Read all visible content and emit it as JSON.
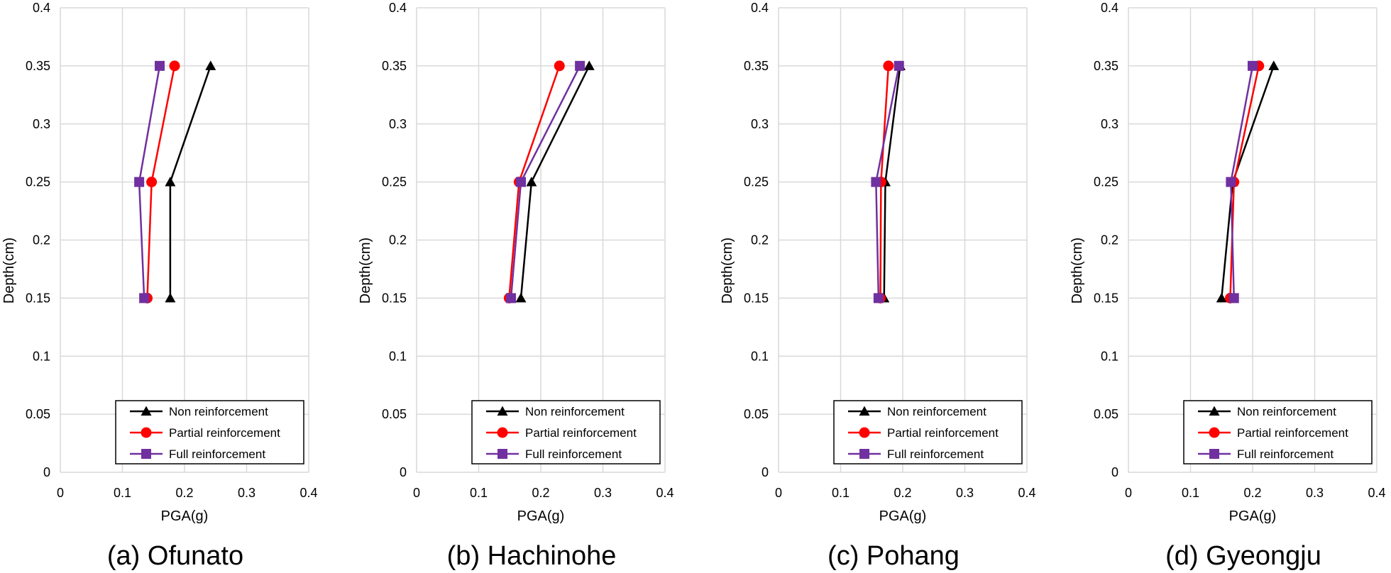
{
  "chart_data": [
    {
      "type": "line",
      "caption": "(a) Ofunato",
      "xlabel": "PGA(g)",
      "ylabel": "Depth(cm)",
      "xlim": [
        0,
        0.4
      ],
      "ylim": [
        0,
        0.4
      ],
      "xticks": [
        "0",
        "0.1",
        "0.2",
        "0.3",
        "0.4"
      ],
      "yticks": [
        "0",
        "0.05",
        "0.1",
        "0.15",
        "0.2",
        "0.25",
        "0.3",
        "0.35",
        "0.4"
      ],
      "grid": true,
      "legend_position": "bottom-right",
      "series": [
        {
          "name": "Non reinforcement",
          "color": "#000000",
          "marker": "triangle",
          "x": [
            0.177,
            0.177,
            0.242
          ],
          "y": [
            0.15,
            0.25,
            0.35
          ]
        },
        {
          "name": "Partial reinforcement",
          "color": "#ff0000",
          "marker": "circle",
          "x": [
            0.14,
            0.147,
            0.184
          ],
          "y": [
            0.15,
            0.25,
            0.35
          ]
        },
        {
          "name": "Full reinforcement",
          "color": "#7030a0",
          "marker": "square",
          "x": [
            0.135,
            0.127,
            0.16
          ],
          "y": [
            0.15,
            0.25,
            0.35
          ]
        }
      ]
    },
    {
      "type": "line",
      "caption": "(b) Hachinohe",
      "xlabel": "PGA(g)",
      "ylabel": "Depth(cm)",
      "xlim": [
        0,
        0.4
      ],
      "ylim": [
        0,
        0.4
      ],
      "xticks": [
        "0",
        "0.1",
        "0.2",
        "0.3",
        "0.4"
      ],
      "yticks": [
        "0",
        "0.05",
        "0.1",
        "0.15",
        "0.2",
        "0.25",
        "0.3",
        "0.35",
        "0.4"
      ],
      "grid": true,
      "legend_position": "bottom-right",
      "series": [
        {
          "name": "Non reinforcement",
          "color": "#000000",
          "marker": "triangle",
          "x": [
            0.168,
            0.185,
            0.278
          ],
          "y": [
            0.15,
            0.25,
            0.35
          ]
        },
        {
          "name": "Partial reinforcement",
          "color": "#ff0000",
          "marker": "circle",
          "x": [
            0.149,
            0.165,
            0.23
          ],
          "y": [
            0.15,
            0.25,
            0.35
          ]
        },
        {
          "name": "Full reinforcement",
          "color": "#7030a0",
          "marker": "square",
          "x": [
            0.152,
            0.168,
            0.263
          ],
          "y": [
            0.15,
            0.25,
            0.35
          ]
        }
      ]
    },
    {
      "type": "line",
      "caption": "(c) Pohang",
      "xlabel": "PGA(g)",
      "ylabel": "Depth(cm)",
      "xlim": [
        0,
        0.4
      ],
      "ylim": [
        0,
        0.4
      ],
      "xticks": [
        "0",
        "0.1",
        "0.2",
        "0.3",
        "0.4"
      ],
      "yticks": [
        "0",
        "0.05",
        "0.1",
        "0.15",
        "0.2",
        "0.25",
        "0.3",
        "0.35",
        "0.4"
      ],
      "grid": true,
      "legend_position": "bottom-right",
      "series": [
        {
          "name": "Non reinforcement",
          "color": "#000000",
          "marker": "triangle",
          "x": [
            0.17,
            0.172,
            0.196
          ],
          "y": [
            0.15,
            0.25,
            0.35
          ]
        },
        {
          "name": "Partial reinforcement",
          "color": "#ff0000",
          "marker": "circle",
          "x": [
            0.164,
            0.165,
            0.177
          ],
          "y": [
            0.15,
            0.25,
            0.35
          ]
        },
        {
          "name": "Full reinforcement",
          "color": "#7030a0",
          "marker": "square",
          "x": [
            0.161,
            0.157,
            0.194
          ],
          "y": [
            0.15,
            0.25,
            0.35
          ]
        }
      ]
    },
    {
      "type": "line",
      "caption": "(d) Gyeongju",
      "xlabel": "PGA(g)",
      "ylabel": "Depth(cm)",
      "xlim": [
        0,
        0.4
      ],
      "ylim": [
        0,
        0.4
      ],
      "xticks": [
        "0",
        "0.1",
        "0.2",
        "0.3",
        "0.4"
      ],
      "yticks": [
        "0",
        "0.05",
        "0.1",
        "0.15",
        "0.2",
        "0.25",
        "0.3",
        "0.35",
        "0.4"
      ],
      "grid": true,
      "legend_position": "bottom-right",
      "series": [
        {
          "name": "Non reinforcement",
          "color": "#000000",
          "marker": "triangle",
          "x": [
            0.15,
            0.168,
            0.234
          ],
          "y": [
            0.15,
            0.25,
            0.35
          ]
        },
        {
          "name": "Partial reinforcement",
          "color": "#ff0000",
          "marker": "circle",
          "x": [
            0.164,
            0.17,
            0.21
          ],
          "y": [
            0.15,
            0.25,
            0.35
          ]
        },
        {
          "name": "Full reinforcement",
          "color": "#7030a0",
          "marker": "square",
          "x": [
            0.17,
            0.165,
            0.2
          ],
          "y": [
            0.15,
            0.25,
            0.35
          ]
        }
      ]
    }
  ]
}
